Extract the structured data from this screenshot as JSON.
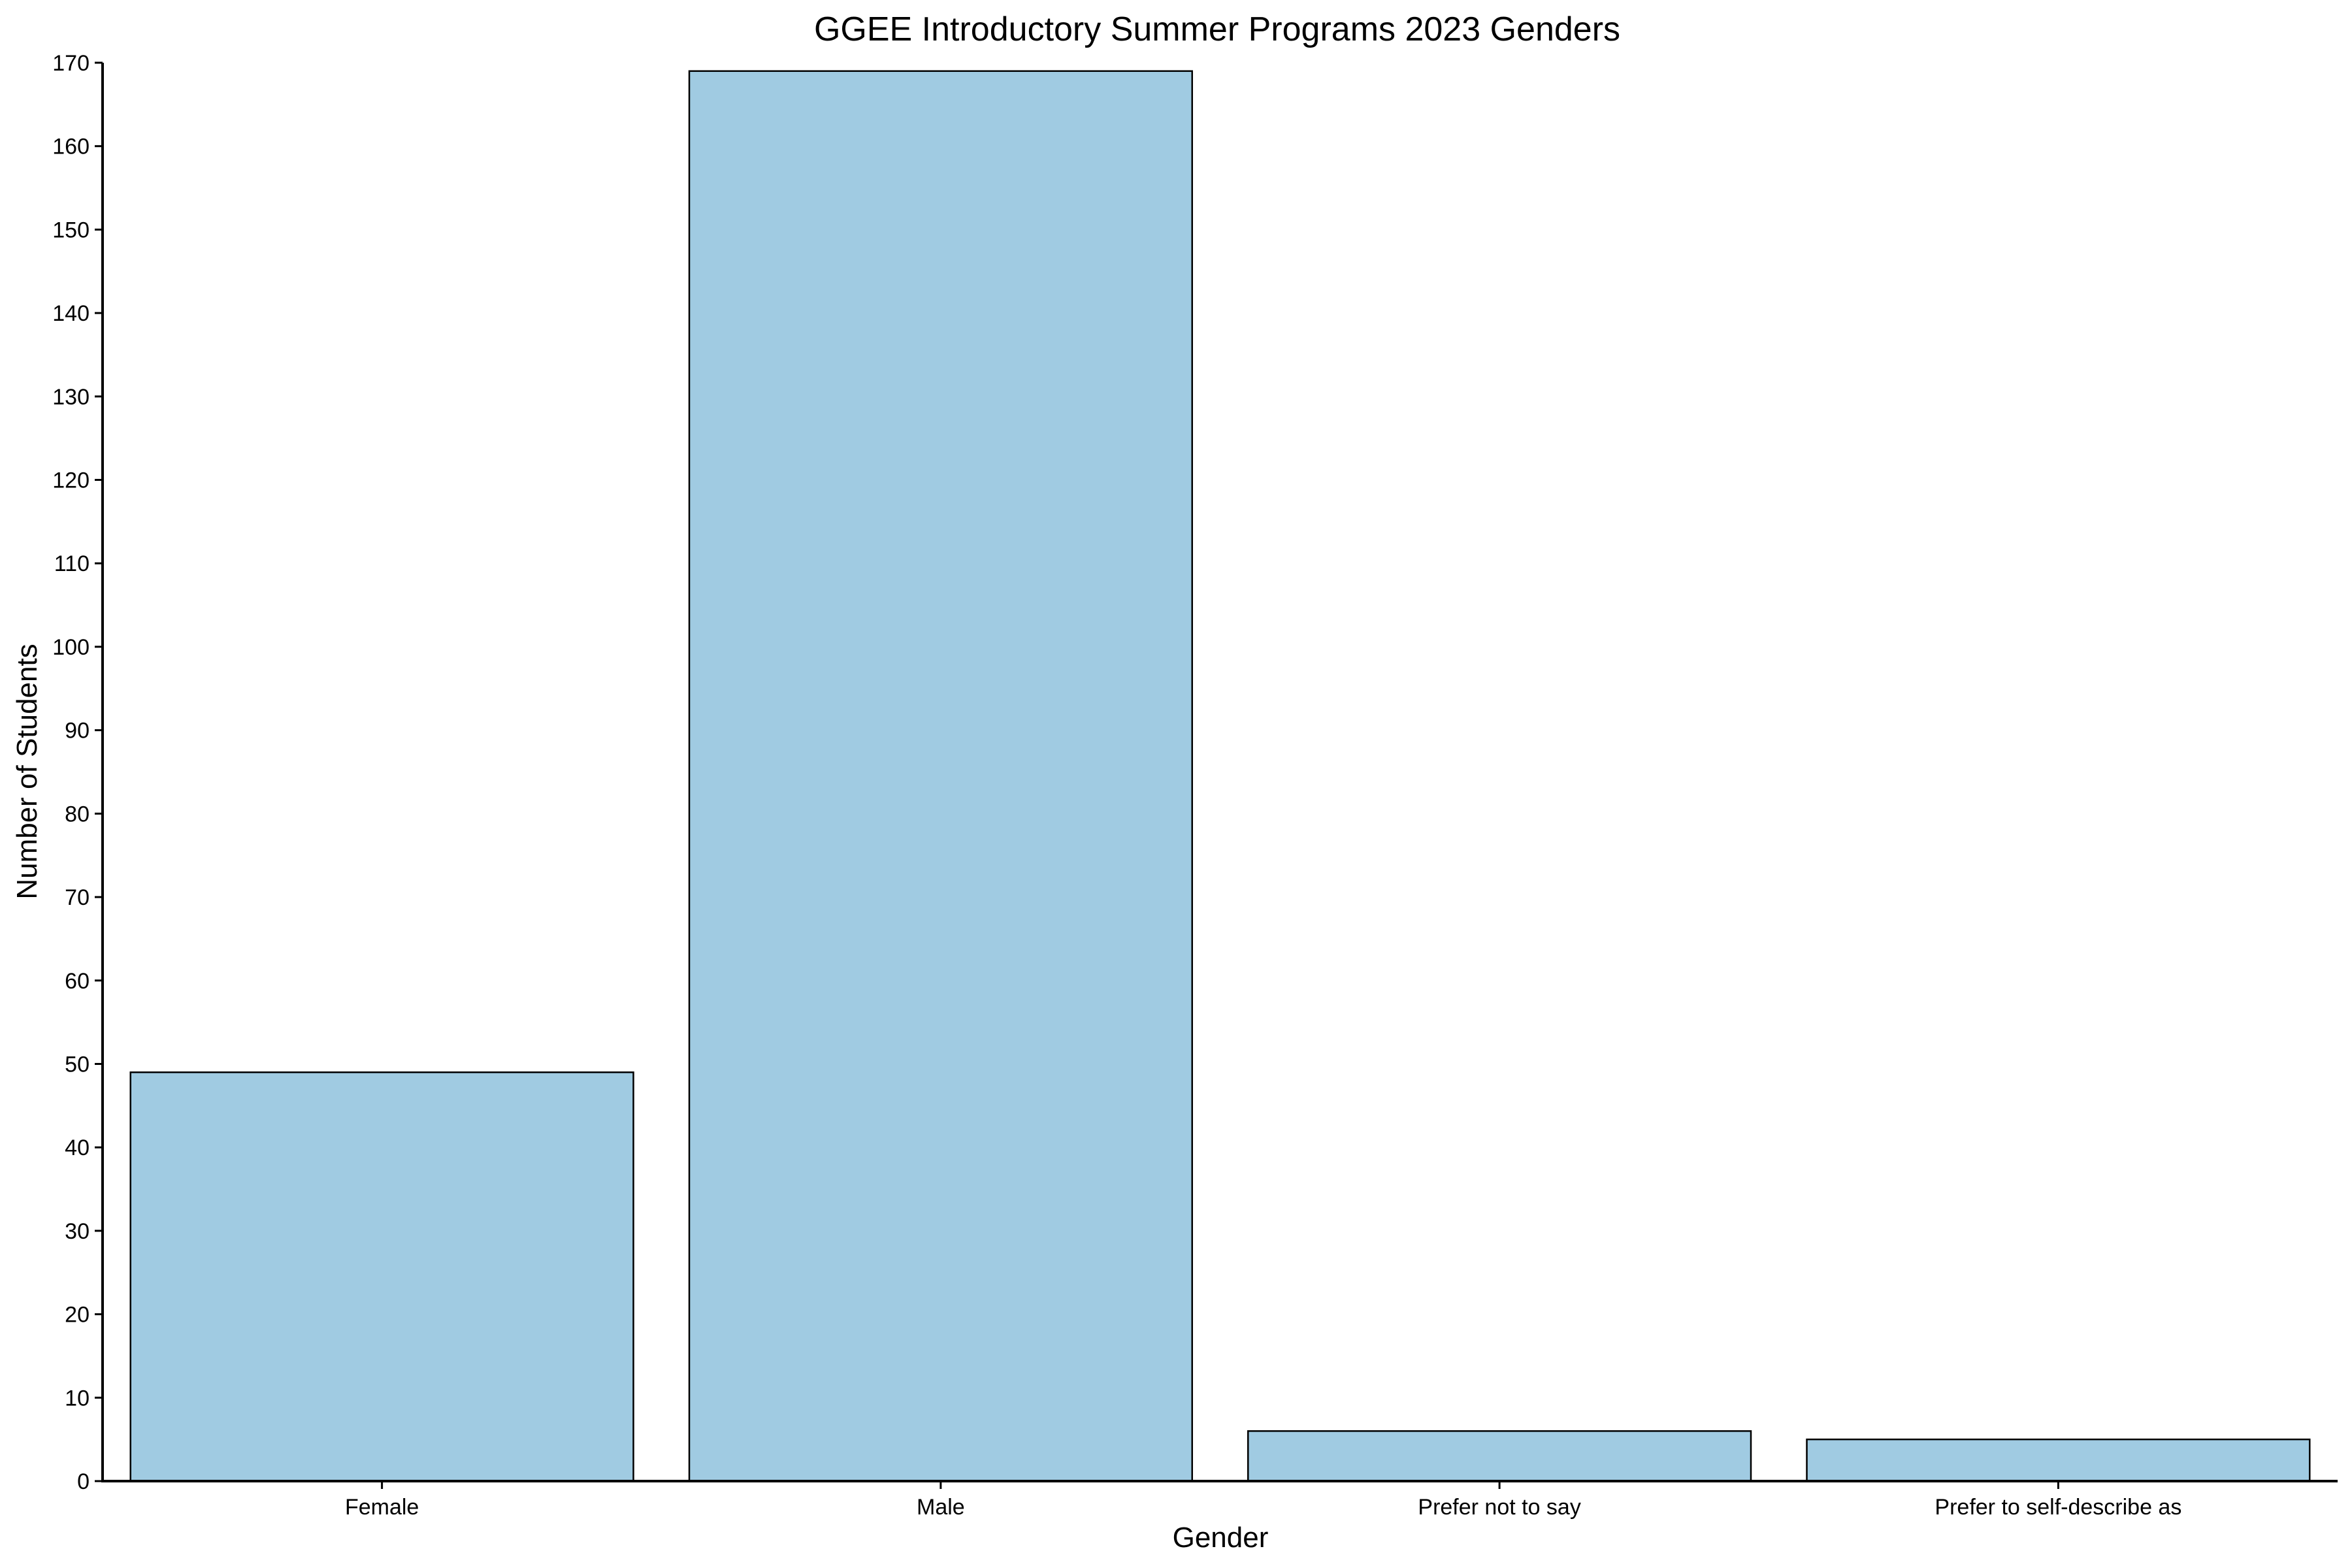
{
  "chart_data": {
    "type": "bar",
    "title": "GGEE Introductory Summer Programs 2023 Genders",
    "xlabel": "Gender",
    "ylabel": "Number of Students",
    "categories": [
      "Female",
      "Male",
      "Prefer not to say",
      "Prefer to self-describe as"
    ],
    "values": [
      49,
      169,
      6,
      5
    ],
    "ylim": [
      0,
      170
    ],
    "yticks": [
      0,
      10,
      20,
      30,
      40,
      50,
      60,
      70,
      80,
      90,
      100,
      110,
      120,
      130,
      140,
      150,
      160,
      170
    ],
    "grid": false,
    "legend": "none",
    "bar_color": "#a0cbe2",
    "bar_edge_color": "#000000"
  }
}
